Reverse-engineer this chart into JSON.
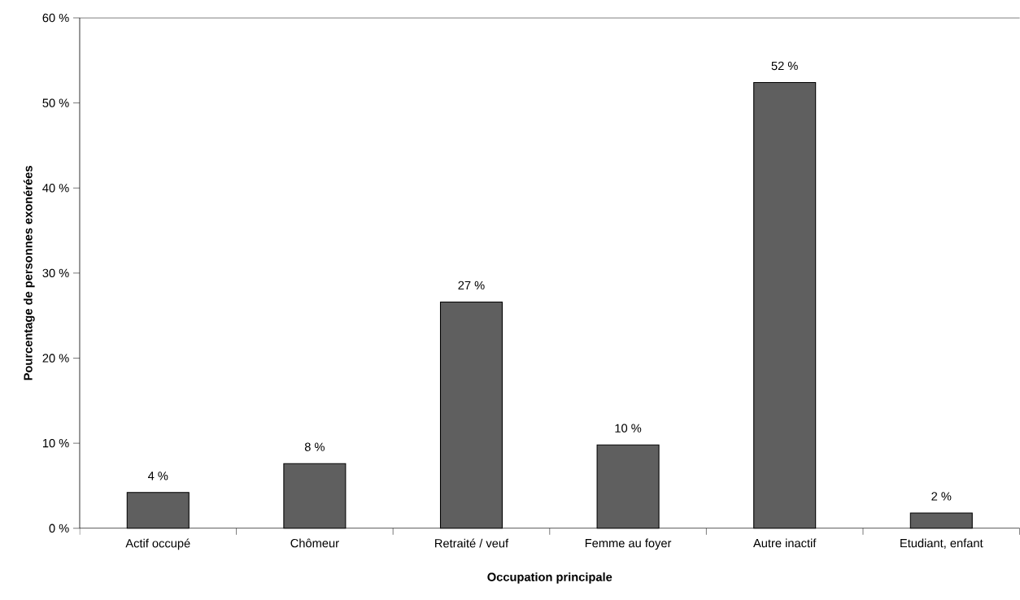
{
  "chart_data": {
    "type": "bar",
    "xlabel": "Occupation principale",
    "ylabel": "Pourcentage de personnes exonérées",
    "categories": [
      "Actif occupé",
      "Chômeur",
      "Retraité / veuf",
      "Femme au foyer",
      "Autre inactif",
      "Etudiant, enfant"
    ],
    "values": [
      4.2,
      7.6,
      26.6,
      9.8,
      52.4,
      1.8
    ],
    "value_labels": [
      "4 %",
      "8 %",
      "27 %",
      "10 %",
      "52 %",
      "2 %"
    ],
    "color": "#5f5f5f",
    "ylim": [
      0,
      60
    ],
    "yticks": [
      {
        "value": 0,
        "label": "0 %"
      },
      {
        "value": 10,
        "label": "10 %"
      },
      {
        "value": 20,
        "label": "20 %"
      },
      {
        "value": 30,
        "label": "30 %"
      },
      {
        "value": 40,
        "label": "40 %"
      },
      {
        "value": 50,
        "label": "50 %"
      },
      {
        "value": 60,
        "label": "60 %"
      }
    ],
    "grid": false
  }
}
